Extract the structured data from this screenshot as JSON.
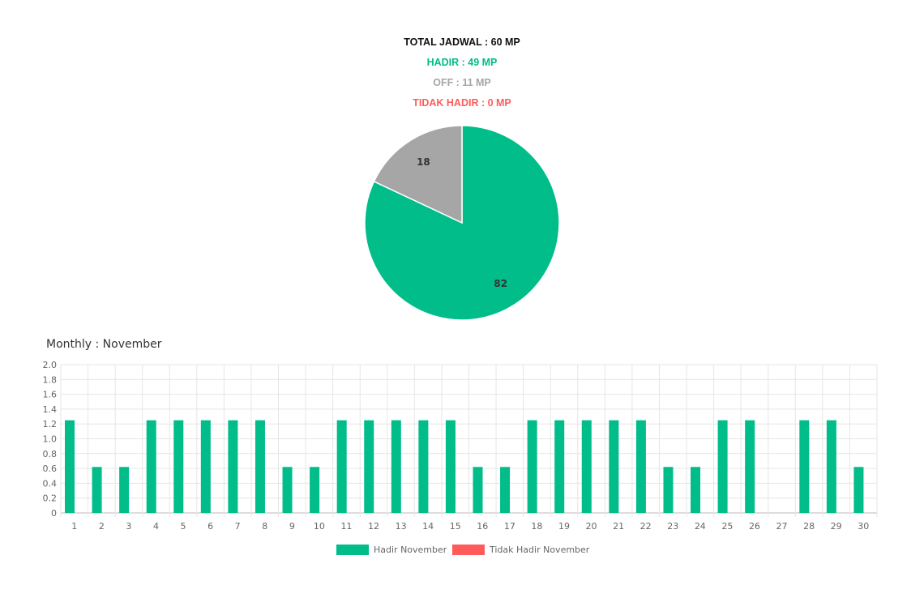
{
  "summary": {
    "total": "TOTAL JADWAL : 60 MP",
    "hadir": "HADIR : 49 MP",
    "off": "OFF : 11 MP",
    "tidak_hadir": "TIDAK HADIR : 0 MP"
  },
  "colors": {
    "hadir": "#00bd8a",
    "off": "#a6a6a6",
    "tidak_hadir": "#ff5b5b",
    "total": "#111111"
  },
  "monthly_title": "Monthly : November",
  "chart_data": [
    {
      "type": "pie",
      "slices": [
        {
          "value": 82,
          "label": "82",
          "color": "#00bd8a"
        },
        {
          "value": 18,
          "label": "18",
          "color": "#a6a6a6"
        }
      ]
    },
    {
      "type": "bar",
      "categories": [
        "1",
        "2",
        "3",
        "4",
        "5",
        "6",
        "7",
        "8",
        "9",
        "10",
        "11",
        "12",
        "13",
        "14",
        "15",
        "16",
        "17",
        "18",
        "19",
        "20",
        "21",
        "22",
        "23",
        "24",
        "25",
        "26",
        "27",
        "28",
        "29",
        "30"
      ],
      "series": [
        {
          "name": "Hadir November",
          "color": "#00bd8a",
          "values": [
            1.25,
            0.62,
            0.62,
            1.25,
            1.25,
            1.25,
            1.25,
            1.25,
            0.62,
            0.62,
            1.25,
            1.25,
            1.25,
            1.25,
            1.25,
            0.62,
            0.62,
            1.25,
            1.25,
            1.25,
            1.25,
            1.25,
            0.62,
            0.62,
            1.25,
            1.25,
            0,
            1.25,
            1.25,
            0.62
          ]
        },
        {
          "name": "Tidak Hadir November",
          "color": "#ff5b5b",
          "values": [
            0,
            0,
            0,
            0,
            0,
            0,
            0,
            0,
            0,
            0,
            0,
            0,
            0,
            0,
            0,
            0,
            0,
            0,
            0,
            0,
            0,
            0,
            0,
            0,
            0,
            0,
            0,
            0,
            0,
            0
          ]
        }
      ],
      "yticks": [
        "0",
        "0.2",
        "0.4",
        "0.6",
        "0.8",
        "1.0",
        "1.2",
        "1.4",
        "1.6",
        "1.8",
        "2.0"
      ],
      "ylim": [
        0,
        2
      ],
      "grid": true,
      "legend": "bottom"
    }
  ]
}
